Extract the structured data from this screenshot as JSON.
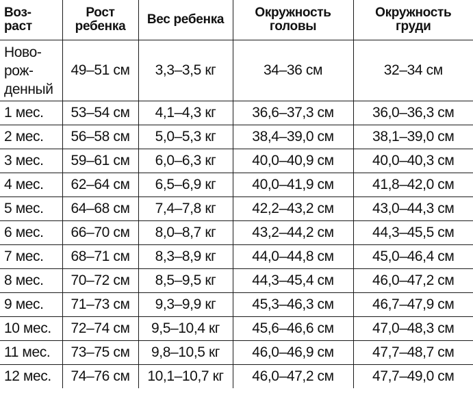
{
  "headers": {
    "age": [
      "Воз-",
      "раст"
    ],
    "height": [
      "Рост",
      "ребенка"
    ],
    "weight": [
      "Вес ребенка"
    ],
    "head": [
      "Окружность",
      "головы"
    ],
    "chest": [
      "Окружность",
      "груди"
    ]
  },
  "rows": [
    {
      "age": [
        "Ново-",
        "рож-",
        "денный"
      ],
      "height": "49–51 см",
      "weight": "3,3–3,5  кг",
      "head": "34–36 см",
      "chest": "32–34 см"
    },
    {
      "age": [
        "1  мес."
      ],
      "height": "53–54 см",
      "weight": "4,1–4,3  кг",
      "head": "36,6–37,3  см",
      "chest": "36,0–36,3  см"
    },
    {
      "age": [
        "2  мес."
      ],
      "height": "56–58 см",
      "weight": "5,0–5,3  кг",
      "head": "38,4–39,0  см",
      "chest": "38,1–39,0  см"
    },
    {
      "age": [
        "3  мес."
      ],
      "height": "59–61 см",
      "weight": "6,0–6,3  кг",
      "head": "40,0–40,9  см",
      "chest": "40,0–40,3  см"
    },
    {
      "age": [
        "4  мес."
      ],
      "height": "62–64 см",
      "weight": "6,5–6,9  кг",
      "head": "40,0–41,9  см",
      "chest": "41,8–42,0  см"
    },
    {
      "age": [
        "5  мес."
      ],
      "height": "64–68 см",
      "weight": "7,4–7,8  кг",
      "head": "42,2–43,2  см",
      "chest": "43,0–44,3  см"
    },
    {
      "age": [
        "6  мес."
      ],
      "height": "66–70 см",
      "weight": "8,0–8,7  кг",
      "head": "43,2–44,2  см",
      "chest": "44,3–45,5  см"
    },
    {
      "age": [
        "7  мес."
      ],
      "height": "68–71 см",
      "weight": "8,3–8,9  кг",
      "head": "44,0–44,8  см",
      "chest": "45,0–46,4  см"
    },
    {
      "age": [
        "8  мес."
      ],
      "height": "70–72 см",
      "weight": "8,5–9,5  кг",
      "head": "44,3–45,4  см",
      "chest": "46,0–47,2  см"
    },
    {
      "age": [
        "9  мес."
      ],
      "height": "71–73 см",
      "weight": "9,3–9,9  кг",
      "head": "45,3–46,3  см",
      "chest": "46,7–47,9  см"
    },
    {
      "age": [
        "10  мес."
      ],
      "height": "72–74 см",
      "weight": "9,5–10,4  кг",
      "head": "45,6–46,6  см",
      "chest": "47,0–48,3  см"
    },
    {
      "age": [
        "11  мес."
      ],
      "height": "73–75 см",
      "weight": "9,8–10,5  кг",
      "head": "46,0–46,9  см",
      "chest": "47,7–48,7  см"
    },
    {
      "age": [
        "12  мес."
      ],
      "height": "74–76 см",
      "weight": "10,1–10,7  кг",
      "head": "46,0–47,2  см",
      "chest": "47,7–49,0  см"
    }
  ]
}
